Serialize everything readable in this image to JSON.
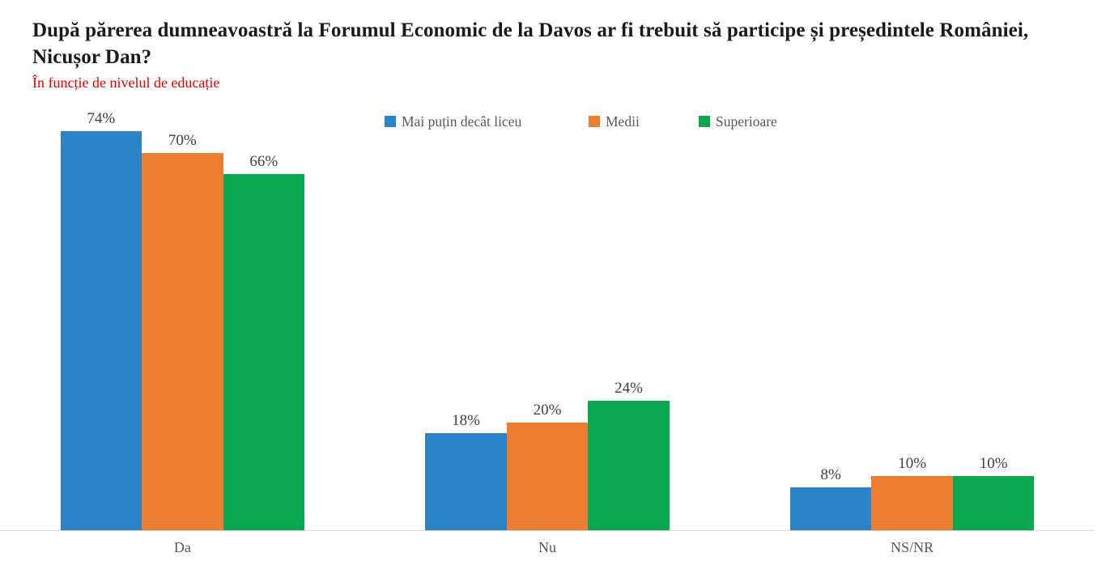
{
  "page": {
    "title_lines": [
      "După părerea dumneavoastră la Forumul Economic de la Davos ar fi trebuit să participe și președintele României,",
      "Nicușor Dan?"
    ],
    "subtitle": "În funcție de nivelul de educație"
  },
  "colors": {
    "title_text": "#1a1a1a",
    "subtitle_red": "#e00000",
    "axis_line": "#d9d9d9",
    "value_label": "#404040",
    "category_label": "#595959",
    "legend_label": "#595959"
  },
  "chart_data": {
    "type": "bar",
    "title": "După părerea dumneavoastră la Forumul Economic de la Davos ar fi trebuit să participe și președintele României, Nicușor Dan?",
    "subtitle": "În funcție de nivelul de educație",
    "categories": [
      "Da",
      "Nu",
      "NS/NR"
    ],
    "series": [
      {
        "name": "Mai puțin decât liceu",
        "color": "#2b83c8",
        "values": [
          74,
          18,
          8
        ]
      },
      {
        "name": "Medii",
        "color": "#ed7d31",
        "values": [
          70,
          20,
          10
        ]
      },
      {
        "name": "Superioare",
        "color": "#0aa94f",
        "values": [
          66,
          24,
          10
        ]
      }
    ],
    "value_suffix": "%",
    "data_labels": true,
    "grid": false,
    "ylim": [
      0,
      78
    ],
    "legend_position": "top-center",
    "xlabel": "",
    "ylabel": ""
  }
}
